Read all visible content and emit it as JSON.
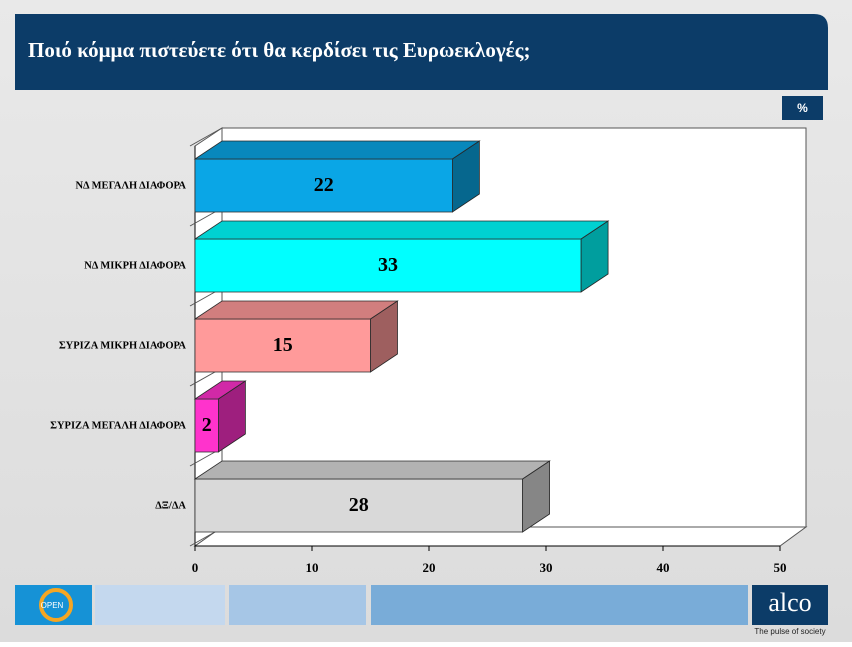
{
  "chart_data": {
    "type": "bar3d_horizontal",
    "title": "Ποιό κόμμα πιστεύετε ότι θα κερδίσει τις Ευρωεκλογές;",
    "unit": "%",
    "categories": [
      "ΝΔ ΜΕΓΑΛΗ ΔΙΑΦΟΡΑ",
      "ΝΔ ΜΙΚΡΗ ΔΙΑΦΟΡΑ",
      "ΣΥΡΙΖΑ ΜΙΚΡΗ ΔΙΑΦΟΡΑ",
      "ΣΥΡΙΖΑ ΜΕΓΑΛΗ ΔΙΑΦΟΡΑ",
      "ΔΞ/ΔΑ"
    ],
    "values": [
      22,
      33,
      15,
      2,
      28
    ],
    "colors": [
      "#0aa6e6",
      "#00ffff",
      "#ff9a9a",
      "#ff33cc",
      "#d9d9d9"
    ],
    "xlim": [
      0,
      50
    ],
    "xticks": [
      0,
      10,
      20,
      30,
      40,
      50
    ]
  },
  "footer": {
    "logo_left": "OPEN",
    "logo_right": "alco",
    "tagline": "The pulse of society"
  }
}
